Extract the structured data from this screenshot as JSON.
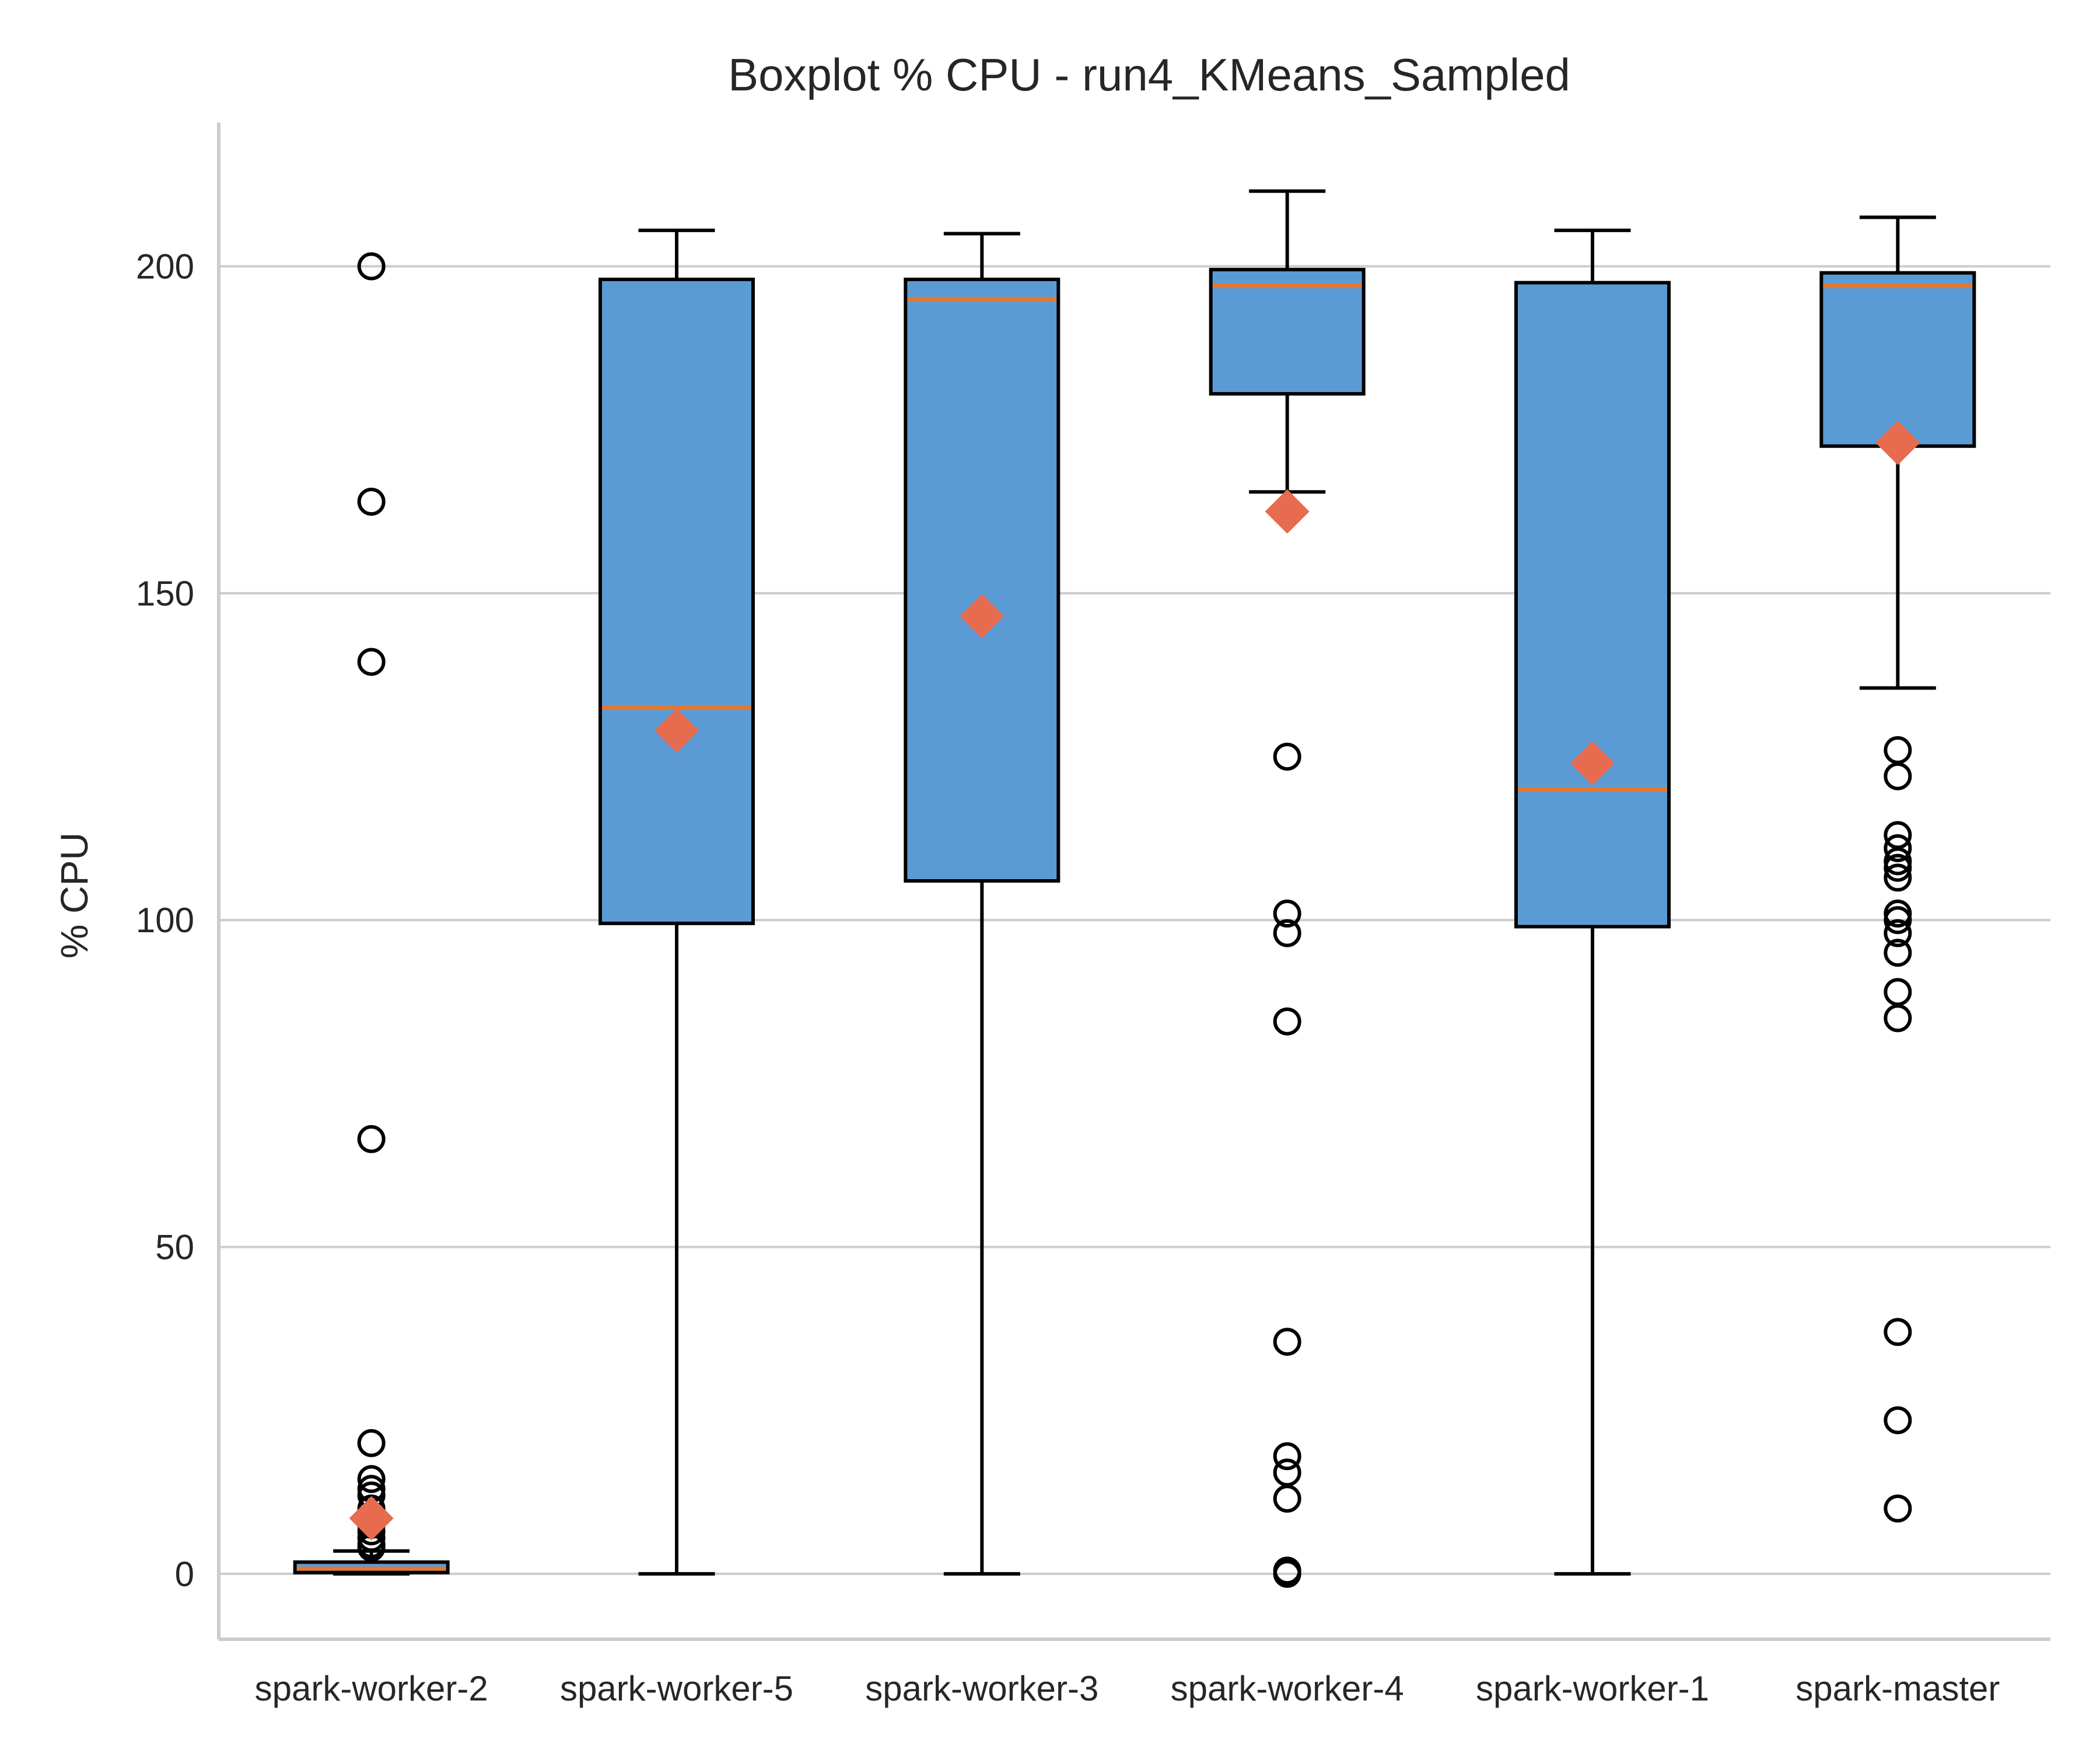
{
  "chart_data": {
    "type": "boxplot",
    "title": "Boxplot % CPU - run4_KMeans_Sampled",
    "xlabel": "",
    "ylabel": "% CPU",
    "ylim": [
      -10,
      222
    ],
    "yticks": [
      0,
      50,
      100,
      150,
      200
    ],
    "grid": "horizontal",
    "colors": {
      "box_fill": "#5b9bd5",
      "box_edge": "#000000",
      "median": "#e8762b",
      "mean_marker": "#e76b4f",
      "grid": "#cccccc",
      "axis": "#cccccc"
    },
    "categories": [
      "spark-worker-2",
      "spark-worker-5",
      "spark-worker-3",
      "spark-worker-4",
      "spark-worker-1",
      "spark-master"
    ],
    "boxes": [
      {
        "category": "spark-worker-2",
        "whisker_low": 0,
        "q1": 0.2,
        "median": 0.8,
        "q3": 1.8,
        "whisker_high": 3.5,
        "mean": 8.5,
        "outliers": [
          200,
          164,
          139.5,
          66.5,
          20,
          14.5,
          13,
          12,
          10,
          8.5,
          7.5,
          6.5,
          5.5,
          4.5,
          4
        ]
      },
      {
        "category": "spark-worker-5",
        "whisker_low": 0,
        "q1": 99.5,
        "median": 132.5,
        "q3": 198,
        "whisker_high": 205.5,
        "mean": 129,
        "outliers": []
      },
      {
        "category": "spark-worker-3",
        "whisker_low": 0,
        "q1": 106,
        "median": 195,
        "q3": 198,
        "whisker_high": 205,
        "mean": 146.5,
        "outliers": []
      },
      {
        "category": "spark-worker-4",
        "whisker_low": 165.5,
        "q1": 180.5,
        "median": 197,
        "q3": 199.5,
        "whisker_high": 211.5,
        "mean": 162.5,
        "outliers": [
          125,
          101,
          98,
          84.5,
          35.5,
          18,
          15.5,
          11.5,
          0.5,
          0
        ]
      },
      {
        "category": "spark-worker-1",
        "whisker_low": 0,
        "q1": 99,
        "median": 120,
        "q3": 197.5,
        "whisker_high": 205.5,
        "mean": 124,
        "outliers": []
      },
      {
        "category": "spark-master",
        "whisker_low": 135.5,
        "q1": 172.5,
        "median": 197,
        "q3": 199,
        "whisker_high": 207.5,
        "mean": 173,
        "outliers": [
          126,
          122,
          113,
          111,
          109,
          108,
          106.5,
          101,
          100,
          98,
          95,
          89,
          85,
          37,
          23.5,
          10
        ]
      }
    ]
  }
}
